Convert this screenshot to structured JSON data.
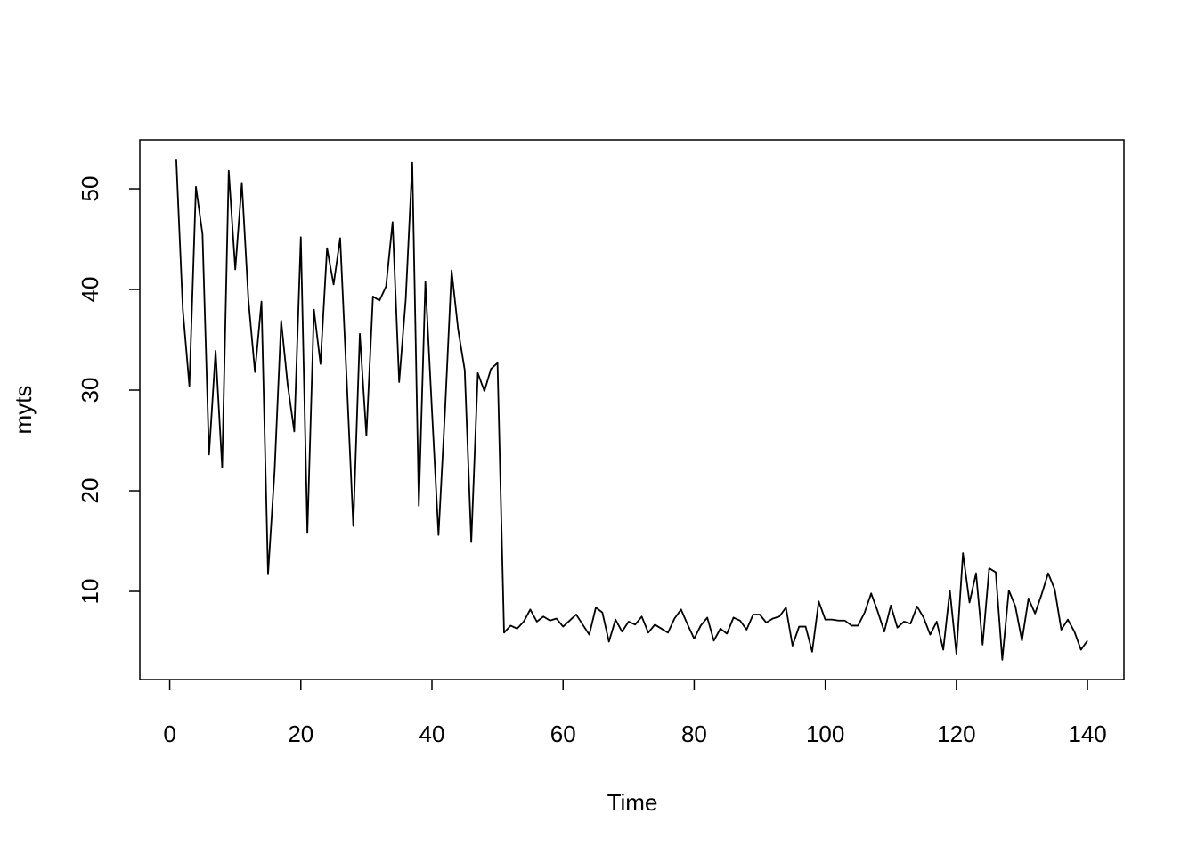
{
  "chart_data": {
    "type": "line",
    "xlabel": "Time",
    "ylabel": "myts",
    "color": "#000000",
    "xlim": [
      -4.56,
      145.56
    ],
    "ylim": [
      1.24,
      54.87
    ],
    "xticks": [
      0,
      20,
      40,
      60,
      80,
      100,
      120,
      140
    ],
    "yticks": [
      10,
      20,
      30,
      40,
      50
    ],
    "x": [
      1,
      2,
      3,
      4,
      5,
      6,
      7,
      8,
      9,
      10,
      11,
      12,
      13,
      14,
      15,
      16,
      17,
      18,
      19,
      20,
      21,
      22,
      23,
      24,
      25,
      26,
      27,
      28,
      29,
      30,
      31,
      32,
      33,
      34,
      35,
      36,
      37,
      38,
      39,
      40,
      41,
      42,
      43,
      44,
      45,
      46,
      47,
      48,
      49,
      50,
      51,
      52,
      53,
      54,
      55,
      56,
      57,
      58,
      59,
      60,
      61,
      62,
      63,
      64,
      65,
      66,
      67,
      68,
      69,
      70,
      71,
      72,
      73,
      74,
      75,
      76,
      77,
      78,
      79,
      80,
      81,
      82,
      83,
      84,
      85,
      86,
      87,
      88,
      89,
      90,
      91,
      92,
      93,
      94,
      95,
      96,
      97,
      98,
      99,
      100,
      101,
      102,
      103,
      104,
      105,
      106,
      107,
      108,
      109,
      110,
      111,
      112,
      113,
      114,
      115,
      116,
      117,
      118,
      119,
      120,
      121,
      122,
      123,
      124,
      125,
      126,
      127,
      128,
      129,
      130,
      131,
      132,
      133,
      134,
      135,
      136,
      137,
      138,
      139,
      140
    ],
    "values": [
      52.9,
      38,
      30.4,
      50.2,
      45.5,
      23.6,
      33.9,
      22.3,
      51.8,
      42,
      50.6,
      39,
      31.8,
      38.8,
      11.7,
      22,
      36.9,
      30.5,
      25.9,
      45.2,
      15.8,
      38,
      32.6,
      44.1,
      40.5,
      45.1,
      31,
      16.5,
      35.6,
      25.5,
      39.3,
      38.9,
      40.3,
      46.7,
      30.8,
      39,
      52.6,
      18.5,
      40.8,
      28,
      15.6,
      28,
      41.9,
      36,
      32,
      14.9,
      31.7,
      29.9,
      32.1,
      32.7,
      5.9,
      6.6,
      6.3,
      7,
      8.2,
      7,
      7.5,
      7.1,
      7.3,
      6.5,
      7.1,
      7.7,
      6.7,
      5.7,
      8.4,
      7.9,
      5,
      7.2,
      6,
      7,
      6.7,
      7.5,
      5.9,
      6.7,
      6.3,
      5.9,
      7.3,
      8.2,
      6.7,
      5.3,
      6.6,
      7.4,
      5.1,
      6.3,
      5.8,
      7.4,
      7.1,
      6.2,
      7.7,
      7.7,
      6.9,
      7.3,
      7.5,
      8.4,
      4.6,
      6.5,
      6.5,
      4,
      9,
      7.2,
      7.2,
      7.1,
      7.1,
      6.6,
      6.6,
      7.9,
      9.8,
      8,
      6,
      8.6,
      6.4,
      7,
      6.8,
      8.5,
      7.4,
      5.7,
      7,
      4.2,
      10.1,
      3.8,
      13.8,
      8.9,
      11.8,
      4.7,
      12.3,
      11.9,
      3.2,
      10.1,
      8.5,
      5.1,
      9.3,
      7.8,
      9.7,
      11.8,
      10.2,
      6.2,
      7.2,
      6,
      4.2,
      5.1
    ]
  }
}
